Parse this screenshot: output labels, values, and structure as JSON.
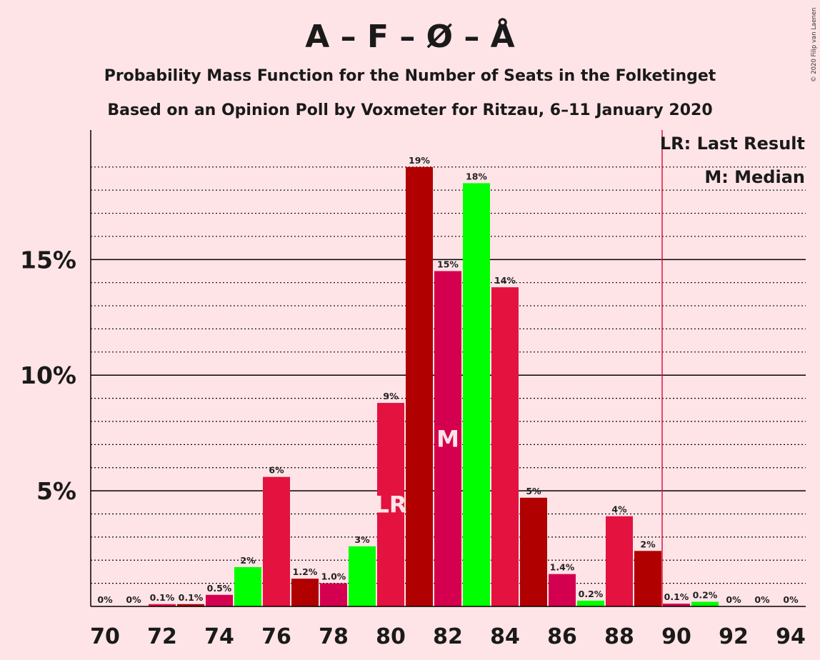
{
  "chart_data": {
    "type": "bar",
    "title": "A – F – Ø – Å",
    "subtitle_line1": "Probability Mass Function for the Number of Seats in the Folketinget",
    "subtitle_line2": "Based on an Opinion Poll by Voxmeter for Ritzau, 6–11 January 2020",
    "copyright": "© 2020 Filip van Laenen",
    "x": [
      70,
      71,
      72,
      73,
      74,
      75,
      76,
      77,
      78,
      79,
      80,
      81,
      82,
      83,
      84,
      85,
      86,
      87,
      88,
      89,
      90,
      91,
      92,
      93,
      94
    ],
    "values": [
      0,
      0,
      0.1,
      0.1,
      0.5,
      1.7,
      5.6,
      1.2,
      1.0,
      2.6,
      8.8,
      19.0,
      14.5,
      18.3,
      13.8,
      4.7,
      1.4,
      0.25,
      3.9,
      2.4,
      0.12,
      0.2,
      0,
      0,
      0
    ],
    "labels": [
      "0%",
      "0%",
      "0.1%",
      "0.1%",
      "0.5%",
      "2%",
      "6%",
      "1.2%",
      "1.0%",
      "3%",
      "9%",
      "19%",
      "15%",
      "18%",
      "14%",
      "5%",
      "1.4%",
      "0.2%",
      "4%",
      "2%",
      "0.1%",
      "0.2%",
      "0%",
      "0%",
      "0%"
    ],
    "colors": [
      "#e3123f",
      "#b00000",
      "#e3123f",
      "#b00000",
      "#d4004f",
      "#00ff00",
      "#e3123f",
      "#b00000",
      "#d4004f",
      "#00ff00",
      "#e3123f",
      "#b00000",
      "#d4004f",
      "#00ff00",
      "#e3123f",
      "#b00000",
      "#d4004f",
      "#00ff00",
      "#e3123f",
      "#b00000",
      "#d4004f",
      "#00ff00",
      "#e3123f",
      "#b00000",
      "#d4004f"
    ],
    "x_tick_labels": [
      "70",
      "72",
      "74",
      "76",
      "78",
      "80",
      "82",
      "84",
      "86",
      "88",
      "90",
      "92",
      "94"
    ],
    "y_tick_labels": [
      "5%",
      "10%",
      "15%"
    ],
    "y_ticks": [
      5,
      10,
      15
    ],
    "ylim": [
      0,
      20.6
    ],
    "minor_gridlines": [
      1,
      2,
      3,
      4,
      6,
      7,
      8,
      9,
      11,
      12,
      13,
      14,
      16,
      17,
      18,
      19
    ],
    "last_result_seat": 80,
    "last_result_marker": "LR",
    "median_seat": 82,
    "median_marker": "M",
    "majority_line_x": 89.5,
    "majority_line_color": "#e3123f",
    "legend": [
      "LR: Last Result",
      "M: Median"
    ]
  }
}
